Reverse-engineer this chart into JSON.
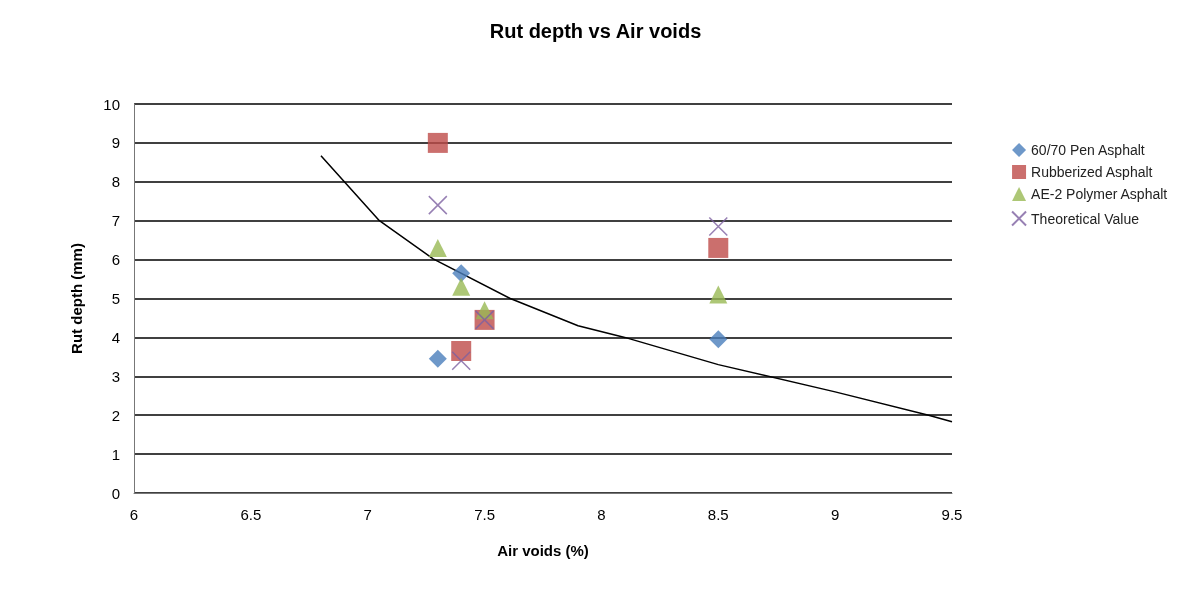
{
  "chart_data": {
    "type": "scatter",
    "title": "Rut depth vs Air voids",
    "xlabel": "Air voids (%)",
    "ylabel": "Rut depth (mm)",
    "xlim": [
      6,
      9.5
    ],
    "xticks": [
      6,
      6.5,
      7,
      7.5,
      8,
      8.5,
      9,
      9.5
    ],
    "ylim": [
      0,
      10
    ],
    "yticks": [
      0,
      1,
      2,
      3,
      4,
      5,
      6,
      7,
      8,
      9,
      10
    ],
    "grid": "y",
    "legend": "right",
    "series": [
      {
        "name": "60/70 Pen Asphalt",
        "color": "#4a7ebb",
        "marker": "diamond",
        "x": [
          7.3,
          7.4,
          8.5
        ],
        "values": [
          3.45,
          5.65,
          3.95
        ]
      },
      {
        "name": "Rubberized Asphalt",
        "color": "#be4b48",
        "marker": "square",
        "x": [
          7.3,
          7.4,
          7.5,
          8.5
        ],
        "values": [
          9,
          3.65,
          4.45,
          6.3
        ]
      },
      {
        "name": "AE-2 Polymer Asphalt",
        "color": "#98b954",
        "marker": "triangle",
        "x": [
          7.3,
          7.4,
          7.5,
          8.5
        ],
        "values": [
          6.3,
          5.3,
          4.7,
          5.1
        ]
      },
      {
        "name": "Theoretical Value",
        "color": "#7d60a0",
        "marker": "cross",
        "x": [
          7.3,
          7.4,
          7.5,
          8.5
        ],
        "values": [
          7.4,
          3.4,
          4.45,
          6.85
        ]
      },
      {
        "type": "line",
        "color": "#000000",
        "marker": "none",
        "x": [
          6.8,
          7.05,
          7.28,
          7.61,
          7.9,
          8.1,
          8.5,
          9,
          9.4,
          9.5
        ],
        "values": [
          8.67,
          7.0,
          6.02,
          5.0,
          4.3,
          4.0,
          3.3,
          2.6,
          2.0,
          1.83
        ]
      }
    ]
  }
}
